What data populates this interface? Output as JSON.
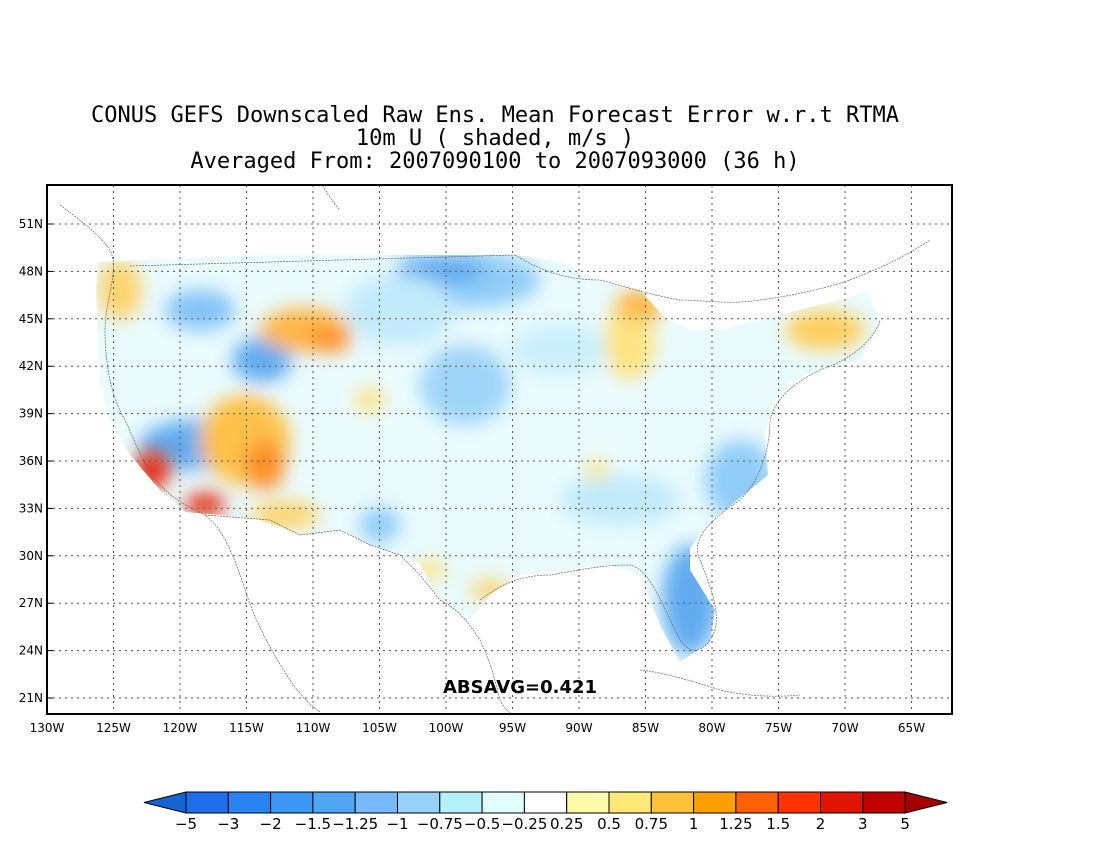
{
  "title": {
    "line1": "CONUS GEFS Downscaled Raw Ens. Mean Forecast Error w.r.t RTMA",
    "line2": "10m U ( shaded, m/s )",
    "line3": "Averaged From: 2007090100 to 2007093000 (36 h)"
  },
  "map": {
    "lon_ticks": [
      "130W",
      "125W",
      "120W",
      "115W",
      "110W",
      "105W",
      "100W",
      "95W",
      "90W",
      "85W",
      "80W",
      "75W",
      "70W",
      "65W"
    ],
    "lat_ticks": [
      "51N",
      "48N",
      "45N",
      "42N",
      "39N",
      "36N",
      "33N",
      "30N",
      "27N",
      "24N",
      "21N"
    ],
    "lon_range": [
      -130,
      -62
    ],
    "lat_range": [
      19,
      53
    ],
    "grid": "dotted",
    "annotation": "ABSAVG=0.421"
  },
  "colorbar": {
    "labels": [
      "−5",
      "−3",
      "−2",
      "−1.5",
      "−1.25",
      "−1",
      "−0.75",
      "−0.5",
      "−0.25",
      "0.25",
      "0.5",
      "0.75",
      "1",
      "1.25",
      "1.5",
      "2",
      "3",
      "5"
    ],
    "colors": [
      "#1464d2",
      "#1e6eeb",
      "#2882f0",
      "#3c96f5",
      "#50a5f5",
      "#78b9fa",
      "#96d2fa",
      "#b4f0fa",
      "#e1ffff",
      "#ffffff",
      "#fffaaa",
      "#ffe878",
      "#ffc03c",
      "#ffa000",
      "#ff6000",
      "#ff3200",
      "#e11400",
      "#c00000",
      "#a50000"
    ]
  },
  "field_blobs": [
    {
      "region": "coastal southern California",
      "lon": -121.5,
      "lat": 35.2,
      "value": 2.5
    },
    {
      "region": "Los Angeles basin",
      "lon": -118.2,
      "lat": 33.6,
      "value": 2.5
    },
    {
      "region": "Great Basin / Arizona",
      "lon": -113.5,
      "lat": 37.8,
      "value": 1.0
    },
    {
      "region": "Idaho / Wyoming",
      "lon": -108.5,
      "lat": 44.2,
      "value": 0.9
    },
    {
      "region": "Washington / Oregon coast",
      "lon": -124.2,
      "lat": 46.0,
      "value": 0.7
    },
    {
      "region": "Northern Michigan",
      "lon": -85.0,
      "lat": 44.5,
      "value": 0.55
    },
    {
      "region": "New England",
      "lon": -71.0,
      "lat": 43.5,
      "value": 0.7
    },
    {
      "region": "Southern Texas coast",
      "lon": -97.2,
      "lat": 28.0,
      "value": 0.5
    },
    {
      "region": "Central California valley",
      "lon": -119.7,
      "lat": 36.8,
      "value": -1.25
    },
    {
      "region": "Central Idaho",
      "lon": -114.0,
      "lat": 43.0,
      "value": -1.0
    },
    {
      "region": "Northern Plains",
      "lon": -100.0,
      "lat": 47.5,
      "value": -0.9
    },
    {
      "region": "Kansas / Nebraska",
      "lon": -97.5,
      "lat": 41.0,
      "value": -0.75
    },
    {
      "region": "Florida",
      "lon": -81.5,
      "lat": 27.5,
      "value": -1.1
    },
    {
      "region": "Georgia / Carolinas coast",
      "lon": -79.0,
      "lat": 33.5,
      "value": -0.9
    },
    {
      "region": "Virginia / North Carolina",
      "lon": -76.5,
      "lat": 36.0,
      "value": -0.9
    }
  ]
}
